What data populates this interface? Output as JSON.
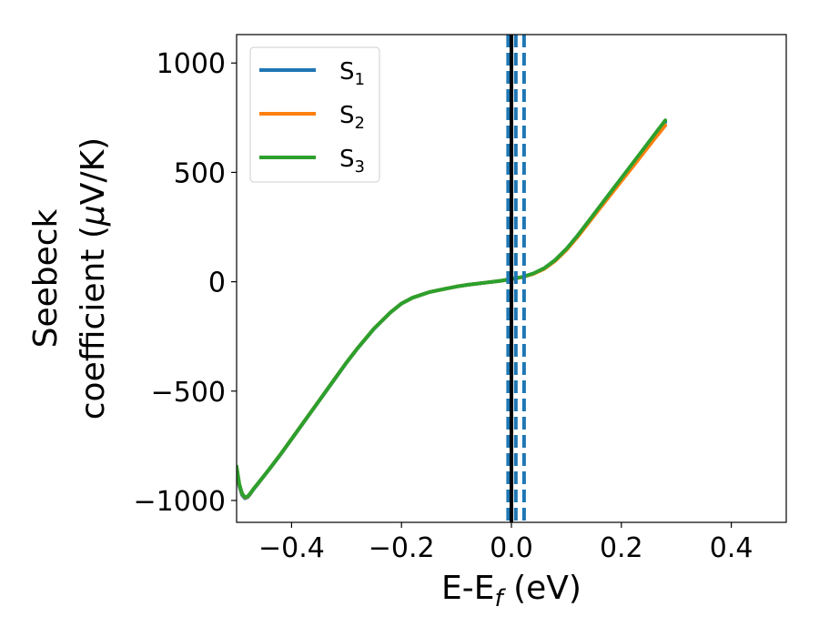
{
  "chart_data": {
    "type": "line",
    "xlabel": {
      "main": "E-E",
      "sub": "f",
      "unit": " (eV)"
    },
    "ylabel": {
      "line1": "Seebeck",
      "line2_text": "coefficient  (",
      "line2_mu": "μ",
      "line2_unit": "V/K)"
    },
    "xlim": [
      -0.5,
      0.5
    ],
    "ylim": [
      -1100,
      1130
    ],
    "xticks": [
      -0.4,
      -0.2,
      0.0,
      0.2,
      0.4
    ],
    "xtick_labels": [
      "−0.4",
      "−0.2",
      "0.0",
      "0.2",
      "0.4"
    ],
    "yticks": [
      -1000,
      -500,
      0,
      500,
      1000
    ],
    "ytick_labels": [
      "−1000",
      "−500",
      "0",
      "500",
      "1000"
    ],
    "grid": false,
    "legend_position": "top-left",
    "series": [
      {
        "name": "S1",
        "label_main": "S",
        "label_sub": "1",
        "color": "#1f77b4",
        "x": [
          -0.5,
          -0.495,
          -0.49,
          -0.485,
          -0.48,
          -0.475,
          -0.47,
          -0.46,
          -0.45,
          -0.44,
          -0.42,
          -0.4,
          -0.38,
          -0.35,
          -0.32,
          -0.3,
          -0.28,
          -0.25,
          -0.22,
          -0.2,
          -0.18,
          -0.15,
          -0.12,
          -0.1,
          -0.08,
          -0.05,
          -0.02,
          0.0,
          0.02,
          0.04,
          0.06,
          0.08,
          0.1,
          0.12,
          0.14,
          0.16,
          0.18,
          0.2,
          0.22,
          0.24,
          0.26,
          0.28
        ],
        "y": [
          -860,
          -935,
          -975,
          -990,
          -985,
          -970,
          -952,
          -920,
          -888,
          -856,
          -790,
          -720,
          -650,
          -545,
          -440,
          -370,
          -305,
          -215,
          -140,
          -100,
          -73,
          -48,
          -32,
          -22,
          -14,
          -5,
          4,
          12,
          22,
          38,
          62,
          100,
          150,
          210,
          275,
          340,
          405,
          470,
          535,
          600,
          665,
          730
        ]
      },
      {
        "name": "S2",
        "label_main": "S",
        "label_sub": "2",
        "color": "#ff7f0e",
        "x": [
          -0.5,
          -0.495,
          -0.49,
          -0.485,
          -0.48,
          -0.475,
          -0.47,
          -0.46,
          -0.45,
          -0.44,
          -0.42,
          -0.4,
          -0.38,
          -0.35,
          -0.32,
          -0.3,
          -0.28,
          -0.25,
          -0.22,
          -0.2,
          -0.18,
          -0.15,
          -0.12,
          -0.1,
          -0.08,
          -0.05,
          -0.02,
          0.0,
          0.02,
          0.04,
          0.06,
          0.08,
          0.1,
          0.12,
          0.14,
          0.16,
          0.18,
          0.2,
          0.22,
          0.24,
          0.26,
          0.28
        ],
        "y": [
          -850,
          -928,
          -970,
          -987,
          -983,
          -968,
          -950,
          -919,
          -887,
          -855,
          -789,
          -719,
          -649,
          -544,
          -439,
          -369,
          -304,
          -214,
          -140,
          -100,
          -73,
          -48,
          -32,
          -22,
          -14,
          -5,
          4,
          12,
          21,
          36,
          59,
          96,
          145,
          204,
          268,
          332,
          396,
          460,
          524,
          588,
          652,
          715
        ]
      },
      {
        "name": "S3",
        "label_main": "S",
        "label_sub": "3",
        "color": "#2ca02c",
        "x": [
          -0.5,
          -0.495,
          -0.49,
          -0.485,
          -0.48,
          -0.475,
          -0.47,
          -0.46,
          -0.45,
          -0.44,
          -0.42,
          -0.4,
          -0.38,
          -0.35,
          -0.32,
          -0.3,
          -0.28,
          -0.25,
          -0.22,
          -0.2,
          -0.18,
          -0.15,
          -0.12,
          -0.1,
          -0.08,
          -0.05,
          -0.02,
          0.0,
          0.02,
          0.04,
          0.06,
          0.08,
          0.1,
          0.12,
          0.14,
          0.16,
          0.18,
          0.2,
          0.22,
          0.24,
          0.26,
          0.28
        ],
        "y": [
          -845,
          -925,
          -968,
          -985,
          -982,
          -967,
          -950,
          -918,
          -887,
          -855,
          -789,
          -719,
          -649,
          -544,
          -439,
          -369,
          -304,
          -214,
          -140,
          -100,
          -73,
          -48,
          -32,
          -22,
          -14,
          -5,
          4,
          12,
          22,
          38,
          62,
          100,
          150,
          210,
          276,
          342,
          408,
          474,
          540,
          606,
          672,
          738
        ]
      }
    ],
    "vlines": [
      {
        "x": 0.0,
        "style": "solid",
        "color": "#000000"
      },
      {
        "x": -0.006,
        "style": "dashed",
        "color": "#1f77b4"
      },
      {
        "x": 0.008,
        "style": "dashed",
        "color": "#1f77b4"
      },
      {
        "x": 0.023,
        "style": "dashed",
        "color": "#1f77b4"
      }
    ]
  }
}
